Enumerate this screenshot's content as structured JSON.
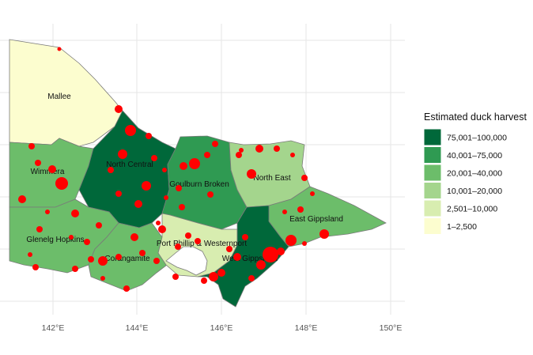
{
  "map": {
    "axis": {
      "x_ticks": [
        "142°E",
        "144°E",
        "146°E",
        "148°E",
        "150°E"
      ]
    },
    "legend": {
      "title": "Estimated duck harvest",
      "items": [
        {
          "label": "75,001–100,000",
          "color": "#00683a"
        },
        {
          "label": "40,001–75,000",
          "color": "#2f9a52"
        },
        {
          "label": "20,001–40,000",
          "color": "#6cbd6a"
        },
        {
          "label": "10,001–20,000",
          "color": "#a4d58d"
        },
        {
          "label": "2,501–10,000",
          "color": "#d8edb0"
        },
        {
          "label": "1–2,500",
          "color": "#fcfdcf"
        }
      ]
    },
    "regions": [
      {
        "name": "Mallee",
        "class": "1–2,500"
      },
      {
        "name": "Wimmera",
        "class": "20,001–40,000"
      },
      {
        "name": "North Central",
        "class": "75,001–100,000"
      },
      {
        "name": "Goulburn Broken",
        "class": "40,001–75,000"
      },
      {
        "name": "North East",
        "class": "10,001–20,000"
      },
      {
        "name": "East Gippsland",
        "class": "20,001–40,000"
      },
      {
        "name": "Glenelg Hopkins",
        "class": "20,001–40,000"
      },
      {
        "name": "Corangamite",
        "class": "20,001–40,000"
      },
      {
        "name": "Port Phillip & Westernport",
        "class": "2,501–10,000"
      },
      {
        "name": "West Gippsland",
        "class": "75,001–100,000"
      }
    ]
  }
}
